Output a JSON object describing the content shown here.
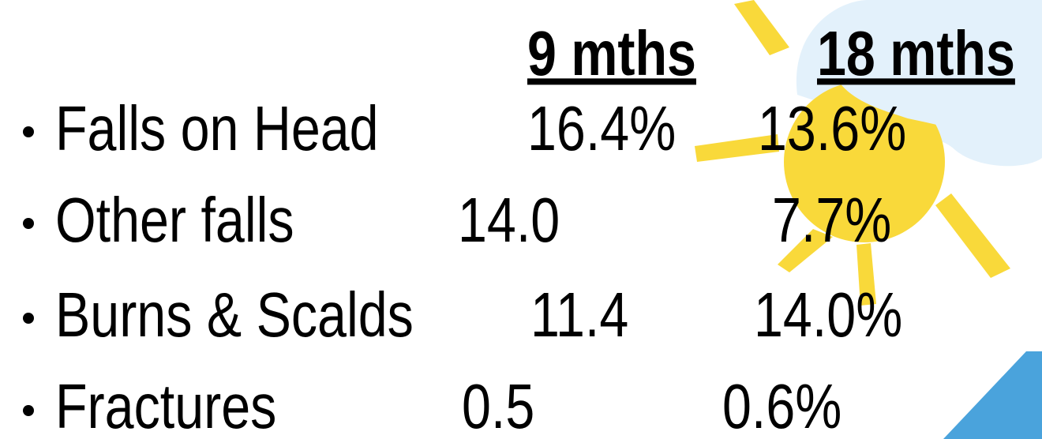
{
  "table": {
    "header": [
      "9 mths",
      "18 mths"
    ],
    "rows": [
      [
        "Falls on Head",
        "16.4%",
        "13.6%"
      ],
      [
        "Other falls",
        "14.0",
        "7.7%"
      ],
      [
        "Burns & Scalds",
        "11.4",
        "14.0%"
      ],
      [
        "Fractures",
        "0.5",
        "0.6%"
      ]
    ]
  }
}
